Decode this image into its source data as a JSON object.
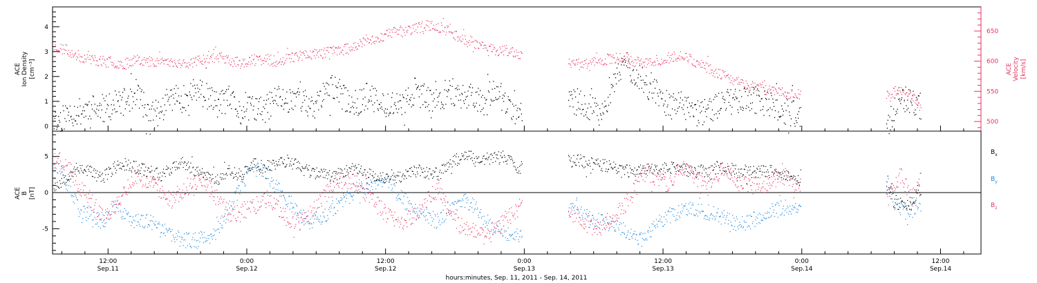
{
  "xaxis": {
    "title": "hours:minutes, Sep. 11, 2011 - Sep. 14, 2011",
    "ticks": [
      {
        "hour": 12,
        "time": "12:00",
        "date": "Sep.11"
      },
      {
        "hour": 24,
        "time": "0:00",
        "date": "Sep.12"
      },
      {
        "hour": 36,
        "time": "12:00",
        "date": "Sep.12"
      },
      {
        "hour": 48,
        "time": "0:00",
        "date": "Sep.13"
      },
      {
        "hour": 60,
        "time": "12:00",
        "date": "Sep.13"
      },
      {
        "hour": 72,
        "time": "0:00",
        "date": "Sep.14"
      },
      {
        "hour": 84,
        "time": "12:00",
        "date": "Sep.14"
      }
    ]
  },
  "colors": {
    "black": "#000000",
    "magenta": "#e8305f",
    "blue": "#1a86dd"
  },
  "chart_data": [
    {
      "type": "scatter",
      "panel": "top",
      "ylabel_left": [
        "ACE",
        "Ion Density",
        "[cm⁻³]"
      ],
      "ylabel_right": [
        "ACE",
        "Velocity",
        "[km/s]"
      ],
      "x_unit": "hours from Sep. 11, 2011 00:00 UT",
      "xlim": [
        7.2,
        87.5
      ],
      "ylim_left": [
        -0.2,
        4.8
      ],
      "ylim_right": [
        484,
        690
      ],
      "yticks_left": [
        0,
        1,
        2,
        3,
        4
      ],
      "yticks_right": [
        500,
        550,
        600,
        650
      ],
      "series": [
        {
          "axis": "left",
          "color": "#000000",
          "x": [
            7.5,
            8.5,
            9.5,
            10.5,
            11.5,
            12.5,
            13.5,
            14.5,
            15.5,
            16.5,
            17.5,
            18.5,
            19.5,
            20.5,
            21.5,
            22.5,
            23.5,
            24.5,
            25.5,
            26.5,
            27.5,
            28.5,
            29.5,
            30.5,
            31.5,
            32.5,
            33.5,
            34.5,
            35.5,
            36.5,
            37.5,
            38.5,
            39.5,
            40.5,
            41.5,
            42.5,
            43.5,
            44.5,
            45.5,
            46.5,
            47.5,
            52.5,
            53.5,
            54.5,
            55.5,
            56.5,
            57.5,
            58.5,
            59.5,
            60.5,
            61.5,
            62.5,
            63.5,
            64.5,
            65.5,
            66.5,
            67.5,
            68.5,
            69.5,
            70.5,
            71.5,
            79.5,
            80.0,
            80.5,
            81.0,
            81.5,
            82.0
          ],
          "y": [
            0.2,
            0.5,
            0.6,
            0.8,
            0.6,
            0.9,
            1.0,
            1.4,
            0.4,
            0.6,
            1.2,
            1.1,
            1.5,
            1.2,
            0.9,
            1.1,
            0.5,
            0.8,
            0.6,
            1.2,
            1.0,
            1.4,
            0.6,
            1.3,
            1.6,
            1.1,
            0.9,
            1.3,
            0.8,
            1.0,
            0.8,
            1.5,
            1.1,
            1.0,
            1.5,
            1.2,
            1.3,
            1.0,
            1.6,
            0.7,
            0.5,
            1.0,
            0.8,
            0.6,
            1.3,
            2.6,
            2.2,
            1.7,
            1.3,
            0.8,
            0.9,
            0.5,
            0.6,
            0.8,
            1.0,
            1.1,
            1.2,
            0.9,
            0.8,
            0.6,
            0.5,
            0.1,
            0.7,
            0.9,
            1.1,
            0.9,
            0.8
          ]
        },
        {
          "axis": "right",
          "color": "#e8305f",
          "x": [
            7.5,
            8.5,
            9.5,
            10.5,
            11.5,
            12.5,
            13.5,
            14.5,
            15.5,
            16.5,
            17.5,
            18.5,
            19.5,
            20.5,
            21.5,
            22.5,
            23.5,
            24.5,
            25.5,
            26.5,
            27.5,
            28.5,
            29.5,
            30.5,
            31.5,
            32.5,
            33.5,
            34.5,
            35.5,
            36.5,
            37.5,
            38.5,
            39.5,
            40.5,
            41.5,
            42.5,
            43.5,
            44.5,
            45.5,
            46.5,
            47.5,
            52.5,
            53.5,
            54.5,
            55.5,
            56.5,
            57.5,
            58.5,
            59.5,
            60.5,
            61.5,
            62.5,
            63.5,
            64.5,
            65.5,
            66.5,
            67.5,
            68.5,
            69.5,
            70.5,
            71.5,
            79.5,
            80.0,
            80.5,
            81.0,
            81.5,
            82.0
          ],
          "y": [
            624,
            618,
            608,
            604,
            600,
            598,
            596,
            606,
            598,
            602,
            598,
            597,
            600,
            606,
            608,
            601,
            597,
            602,
            604,
            600,
            606,
            610,
            612,
            614,
            618,
            620,
            628,
            634,
            640,
            648,
            652,
            654,
            660,
            658,
            650,
            640,
            632,
            625,
            618,
            618,
            612,
            595,
            598,
            602,
            604,
            608,
            600,
            596,
            602,
            606,
            611,
            602,
            594,
            582,
            574,
            566,
            560,
            556,
            551,
            548,
            546,
            542,
            552,
            549,
            546,
            544,
            532
          ]
        }
      ]
    },
    {
      "type": "scatter",
      "panel": "bottom",
      "ylabel_left": [
        "ACE",
        "B",
        "[nT]"
      ],
      "x_unit": "hours from Sep. 11, 2011 00:00 UT",
      "xlim": [
        7.2,
        87.5
      ],
      "ylim": [
        -8.5,
        8.5
      ],
      "yticks": [
        -5,
        0,
        5
      ],
      "zero_line": true,
      "series": [
        {
          "name": "Bx",
          "color": "#000000",
          "x": [
            7.5,
            8.5,
            9.5,
            10.5,
            11.5,
            12.5,
            13.5,
            14.5,
            15.5,
            16.5,
            17.5,
            18.5,
            19.5,
            20.5,
            21.5,
            22.5,
            23.5,
            24.5,
            25.5,
            26.5,
            27.5,
            28.5,
            29.5,
            30.5,
            31.5,
            32.5,
            33.5,
            34.5,
            35.5,
            36.5,
            37.5,
            38.5,
            39.5,
            40.5,
            41.5,
            42.5,
            43.5,
            44.5,
            45.5,
            46.5,
            47.5,
            52.5,
            53.5,
            54.5,
            55.5,
            56.5,
            57.5,
            58.5,
            59.5,
            60.5,
            61.5,
            62.5,
            63.5,
            64.5,
            65.5,
            66.5,
            67.5,
            68.5,
            69.5,
            70.5,
            71.5,
            79.5,
            80.0,
            80.5,
            81.0,
            81.5,
            82.0
          ],
          "y": [
            1.0,
            2.5,
            3.5,
            3.0,
            2.0,
            3.5,
            4.0,
            3.5,
            3.0,
            2.5,
            3.5,
            4.0,
            3.0,
            2.5,
            2.0,
            3.0,
            2.5,
            4.0,
            3.5,
            4.0,
            4.5,
            3.5,
            3.0,
            2.5,
            2.5,
            3.0,
            3.5,
            2.5,
            2.0,
            2.0,
            2.5,
            3.0,
            3.0,
            2.5,
            4.0,
            5.0,
            5.0,
            4.5,
            5.0,
            4.5,
            3.5,
            4.5,
            4.0,
            4.0,
            3.5,
            3.0,
            3.0,
            3.5,
            3.0,
            3.5,
            3.5,
            3.0,
            3.0,
            3.5,
            3.5,
            3.0,
            3.0,
            3.0,
            3.0,
            2.5,
            2.0,
            1.0,
            -1.5,
            -1.5,
            -1.5,
            -1.5,
            0.5
          ]
        },
        {
          "name": "By",
          "color": "#1a86dd",
          "x": [
            7.5,
            8.5,
            9.5,
            10.5,
            11.5,
            12.5,
            13.5,
            14.5,
            15.5,
            16.5,
            17.5,
            18.5,
            19.5,
            20.5,
            21.5,
            22.5,
            23.5,
            24.5,
            25.5,
            26.5,
            27.5,
            28.5,
            29.5,
            30.5,
            31.5,
            32.5,
            33.5,
            34.5,
            35.5,
            36.5,
            37.5,
            38.5,
            39.5,
            40.5,
            41.5,
            42.5,
            43.5,
            44.5,
            45.5,
            46.5,
            47.5,
            52.5,
            53.5,
            54.5,
            55.5,
            56.5,
            57.5,
            58.5,
            59.5,
            60.5,
            61.5,
            62.5,
            63.5,
            64.5,
            65.5,
            66.5,
            67.5,
            68.5,
            69.5,
            70.5,
            71.5,
            79.5,
            80.0,
            80.5,
            81.0,
            81.5,
            82.0
          ],
          "y": [
            4.0,
            1.0,
            -2.5,
            -3.0,
            -4.0,
            -2.0,
            -3.0,
            -4.0,
            -4.0,
            -5.0,
            -6.0,
            -6.5,
            -6.5,
            -6.0,
            -5.0,
            -2.0,
            1.0,
            3.5,
            3.0,
            1.0,
            -1.0,
            -3.0,
            -4.0,
            -3.5,
            -2.0,
            -1.0,
            0.5,
            1.0,
            2.0,
            1.0,
            -1.0,
            -2.0,
            -3.0,
            -4.0,
            -2.0,
            -1.0,
            -1.5,
            -3.5,
            -5.0,
            -5.5,
            -6.0,
            -2.0,
            -3.5,
            -4.0,
            -4.5,
            -5.0,
            -6.0,
            -6.5,
            -4.0,
            -3.0,
            -2.5,
            -2.0,
            -2.5,
            -3.0,
            -3.5,
            -4.5,
            -4.0,
            -3.0,
            -2.5,
            -2.0,
            -2.0,
            1.0,
            -1.5,
            -2.0,
            -2.5,
            -2.5,
            -1.5
          ]
        },
        {
          "name": "Bz",
          "color": "#e8305f",
          "x": [
            7.5,
            8.5,
            9.5,
            10.5,
            11.5,
            12.5,
            13.5,
            14.5,
            15.5,
            16.5,
            17.5,
            18.5,
            19.5,
            20.5,
            21.5,
            22.5,
            23.5,
            24.5,
            25.5,
            26.5,
            27.5,
            28.5,
            29.5,
            30.5,
            31.5,
            32.5,
            33.5,
            34.5,
            35.5,
            36.5,
            37.5,
            38.5,
            39.5,
            40.5,
            41.5,
            42.5,
            43.5,
            44.5,
            45.5,
            46.5,
            47.5,
            52.5,
            53.5,
            54.5,
            55.5,
            56.5,
            57.5,
            58.5,
            59.5,
            60.5,
            61.5,
            62.5,
            63.5,
            64.5,
            65.5,
            66.5,
            67.5,
            68.5,
            69.5,
            70.5,
            71.5,
            79.5,
            80.0,
            80.5,
            81.0,
            81.5,
            82.0
          ],
          "y": [
            4.5,
            3.5,
            1.0,
            -1.0,
            -3.5,
            -2.0,
            0.5,
            2.5,
            1.5,
            0.5,
            -1.0,
            0.5,
            1.5,
            1.0,
            -1.0,
            -3.0,
            -2.5,
            -2.0,
            -1.0,
            -2.0,
            -3.5,
            -4.0,
            -3.0,
            -1.0,
            1.5,
            2.0,
            1.0,
            -0.5,
            -2.0,
            -3.5,
            -4.0,
            -3.0,
            -1.0,
            0.5,
            -2.5,
            -4.5,
            -5.0,
            -6.0,
            -5.0,
            -3.5,
            -2.0,
            -3.0,
            -4.5,
            -5.0,
            -3.5,
            -2.0,
            0.5,
            3.0,
            2.0,
            1.0,
            3.5,
            2.5,
            1.0,
            2.5,
            3.0,
            1.5,
            1.0,
            1.0,
            2.0,
            2.5,
            1.0,
            -0.5,
            1.0,
            2.5,
            1.0,
            -1.0,
            1.5
          ]
        }
      ]
    }
  ]
}
